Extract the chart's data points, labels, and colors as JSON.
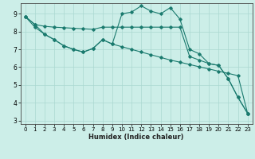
{
  "xlabel": "Humidex (Indice chaleur)",
  "ylabel": "",
  "background_color": "#cceee8",
  "grid_color": "#aad8d0",
  "line_color": "#1a7a6e",
  "xlim": [
    -0.5,
    23.5
  ],
  "ylim": [
    2.8,
    9.6
  ],
  "yticks": [
    3,
    4,
    5,
    6,
    7,
    8,
    9
  ],
  "xticks": [
    0,
    1,
    2,
    3,
    4,
    5,
    6,
    7,
    8,
    9,
    10,
    11,
    12,
    13,
    14,
    15,
    16,
    17,
    18,
    19,
    20,
    21,
    22,
    23
  ],
  "series1_x": [
    0,
    1,
    2,
    3,
    4,
    5,
    6,
    7,
    8,
    9,
    10,
    11,
    12,
    13,
    14,
    15,
    16,
    17,
    18,
    19,
    20,
    21,
    22,
    23
  ],
  "series1_y": [
    8.85,
    8.4,
    7.85,
    7.55,
    7.2,
    7.0,
    6.85,
    7.05,
    7.55,
    7.3,
    9.0,
    9.1,
    9.45,
    9.15,
    9.0,
    9.35,
    8.7,
    7.0,
    6.75,
    6.2,
    6.1,
    5.35,
    4.3,
    3.4
  ],
  "series2_x": [
    0,
    1,
    2,
    3,
    4,
    5,
    6,
    7,
    8,
    9,
    10,
    11,
    12,
    13,
    14,
    15,
    16,
    17,
    18,
    19,
    20,
    21,
    22,
    23
  ],
  "series2_y": [
    8.85,
    8.4,
    8.3,
    8.25,
    8.22,
    8.19,
    8.16,
    8.13,
    8.25,
    8.25,
    8.25,
    8.25,
    8.25,
    8.25,
    8.25,
    8.25,
    8.25,
    6.6,
    6.4,
    6.2,
    6.1,
    5.35,
    4.3,
    3.4
  ],
  "series3_x": [
    0,
    1,
    2,
    3,
    4,
    5,
    6,
    7,
    8,
    9,
    10,
    11,
    12,
    13,
    14,
    15,
    16,
    17,
    18,
    19,
    20,
    21,
    22,
    23
  ],
  "series3_y": [
    8.85,
    8.25,
    7.85,
    7.55,
    7.2,
    7.0,
    6.85,
    7.05,
    7.55,
    7.3,
    7.15,
    7.0,
    6.85,
    6.7,
    6.55,
    6.4,
    6.28,
    6.15,
    6.02,
    5.9,
    5.77,
    5.65,
    5.52,
    3.4
  ]
}
